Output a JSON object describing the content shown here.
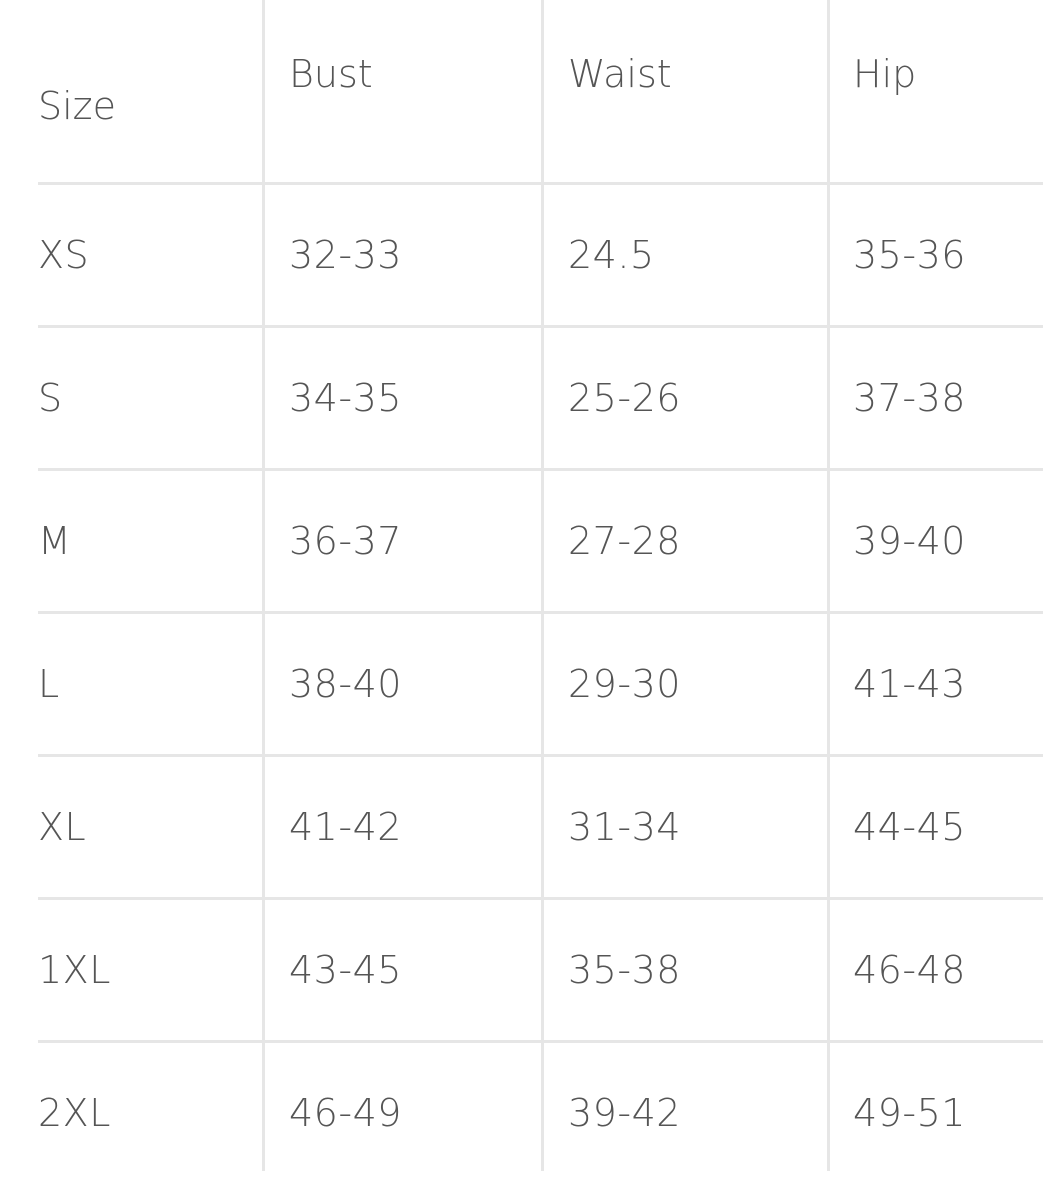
{
  "table": {
    "headers": [
      "Size",
      "Bust",
      "Waist",
      "Hip"
    ],
    "rows": [
      [
        "XS",
        "32-33",
        "24.5",
        "35-36"
      ],
      [
        "S",
        "34-35",
        "25-26",
        "37-38"
      ],
      [
        "M",
        "36-37",
        "27-28",
        "39-40"
      ],
      [
        "L",
        "38-40",
        "29-30",
        "41-43"
      ],
      [
        "XL",
        "41-42",
        "31-34",
        "44-45"
      ],
      [
        "1XL",
        "43-45",
        "35-38",
        "46-48"
      ],
      [
        "2XL",
        "46-49",
        "39-42",
        "49-51"
      ]
    ]
  },
  "colors": {
    "text": "#555555",
    "grid": "#e6e6e6",
    "background": "#ffffff"
  }
}
